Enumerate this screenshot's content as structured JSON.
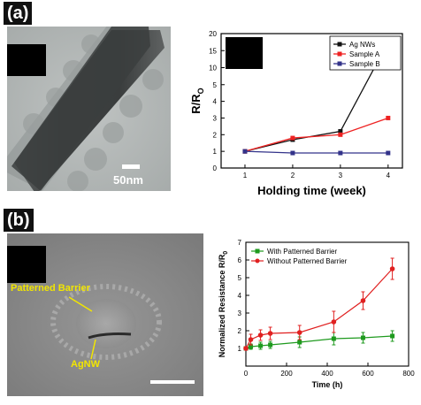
{
  "panel_a": {
    "label": "(a)",
    "scale_bar": "50nm"
  },
  "panel_b": {
    "label": "(b)",
    "annotation_barrier": "Patterned Barrier",
    "annotation_agnw": "AgNW"
  },
  "chart_data": [
    {
      "type": "line",
      "xlabel": "Holding time (week)",
      "ylabel": "R/R",
      "ylabel_sub": "O",
      "xlim": [
        0.5,
        4.3
      ],
      "ylim": [
        0,
        20
      ],
      "xticks": [
        1,
        2,
        3,
        4
      ],
      "yticks": [
        0,
        1,
        2,
        3,
        4,
        5,
        10,
        15,
        20
      ],
      "y_scale_note": "broken axis: 0-5 linear lower segment, 5-20 compressed upper segment",
      "legend_position": "top-right",
      "x": [
        1,
        2,
        3,
        4
      ],
      "series": [
        {
          "name": "Ag NWs",
          "color": "#111111",
          "marker": "square",
          "values": [
            1.0,
            1.7,
            2.2,
            17.5
          ]
        },
        {
          "name": "Sample A",
          "color": "#ee2222",
          "marker": "square",
          "values": [
            1.0,
            1.8,
            2.0,
            3.0
          ]
        },
        {
          "name": "Sample B",
          "color": "#33338a",
          "marker": "square",
          "values": [
            1.0,
            0.9,
            0.9,
            0.9
          ]
        }
      ]
    },
    {
      "type": "line",
      "xlabel": "Time (h)",
      "ylabel": "Normalized Resistance R/R",
      "ylabel_sub": "0",
      "xlim": [
        0,
        800
      ],
      "ylim": [
        0,
        7
      ],
      "xticks": [
        0,
        200,
        400,
        600,
        800
      ],
      "yticks": [
        1,
        2,
        3,
        4,
        5,
        6,
        7
      ],
      "legend_position": "top-left",
      "series": [
        {
          "name": "With Patterned Barrier",
          "color": "#1e9a1e",
          "marker": "square",
          "x": [
            0,
            24,
            72,
            120,
            264,
            432,
            576,
            720
          ],
          "values": [
            1.0,
            1.1,
            1.15,
            1.2,
            1.35,
            1.55,
            1.6,
            1.7
          ],
          "errors": [
            0.1,
            0.15,
            0.2,
            0.2,
            0.3,
            0.35,
            0.3,
            0.3
          ]
        },
        {
          "name": "Without Patterned Barrier",
          "color": "#e02020",
          "marker": "circle",
          "x": [
            0,
            24,
            72,
            120,
            264,
            432,
            576,
            720
          ],
          "values": [
            1.0,
            1.5,
            1.75,
            1.85,
            1.9,
            2.5,
            3.7,
            5.5
          ],
          "errors": [
            0.1,
            0.3,
            0.3,
            0.35,
            0.4,
            0.6,
            0.5,
            0.6
          ]
        }
      ]
    }
  ]
}
